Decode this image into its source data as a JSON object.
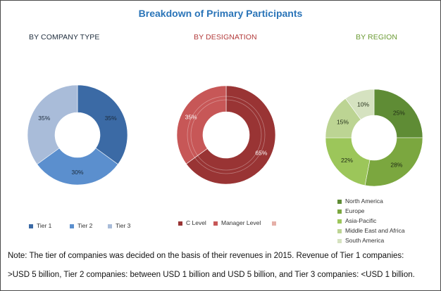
{
  "title": "Breakdown of Primary Participants",
  "note": {
    "line1": "Note: The tier of companies was decided on the basis of their revenues in 2015. Revenue of Tier 1 companies:",
    "line2": ">USD 5 billion, Tier 2 companies: between USD 1 billion and USD 5 billion, and Tier 3 companies: <USD 1 billion."
  },
  "chart_data": [
    {
      "type": "pie",
      "subtitle": "BY COMPANY TYPE",
      "categories": [
        "Tier 1",
        "Tier 2",
        "Tier 3"
      ],
      "values": [
        35,
        30,
        35
      ],
      "labels": [
        "35%",
        "30%",
        "35%"
      ],
      "colors": [
        "#3b6aa5",
        "#5b8fce",
        "#a9bcd9"
      ],
      "donut": true,
      "legend": "bottom"
    },
    {
      "type": "pie",
      "subtitle": "BY DESIGNATION",
      "categories": [
        "C Level",
        "Manager Level",
        ""
      ],
      "values": [
        65,
        35,
        0
      ],
      "labels": [
        "65%",
        "35%",
        ""
      ],
      "colors": [
        "#993434",
        "#c75757",
        "#e5b0a8"
      ],
      "donut": true,
      "legend": "bottom"
    },
    {
      "type": "pie",
      "subtitle": "BY REGION",
      "categories": [
        "North America",
        "Europe",
        "Asia-Pacific",
        "Middle East and Africa",
        "South America"
      ],
      "values": [
        25,
        28,
        22,
        15,
        10
      ],
      "labels": [
        "25%",
        "28%",
        "22%",
        "15%",
        "10%"
      ],
      "colors": [
        "#5f8c35",
        "#7ba73f",
        "#9cc65a",
        "#bcd493",
        "#d5e2c0"
      ],
      "donut": true,
      "legend": "right-bottom"
    }
  ]
}
